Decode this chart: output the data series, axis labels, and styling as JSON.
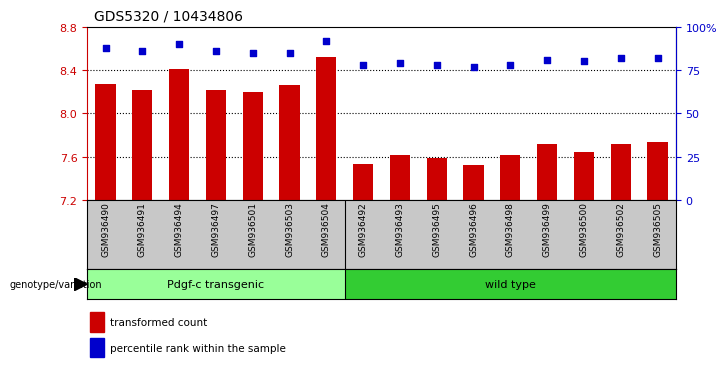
{
  "title": "GDS5320 / 10434806",
  "categories": [
    "GSM936490",
    "GSM936491",
    "GSM936494",
    "GSM936497",
    "GSM936501",
    "GSM936503",
    "GSM936504",
    "GSM936492",
    "GSM936493",
    "GSM936495",
    "GSM936496",
    "GSM936498",
    "GSM936499",
    "GSM936500",
    "GSM936502",
    "GSM936505"
  ],
  "bar_values": [
    8.27,
    8.22,
    8.41,
    8.22,
    8.2,
    8.26,
    8.52,
    7.53,
    7.62,
    7.59,
    7.52,
    7.62,
    7.72,
    7.64,
    7.72,
    7.74
  ],
  "percentile_values": [
    88,
    86,
    90,
    86,
    85,
    85,
    92,
    78,
    79,
    78,
    77,
    78,
    81,
    80,
    82,
    82
  ],
  "bar_color": "#cc0000",
  "dot_color": "#0000cc",
  "ylim_left": [
    7.2,
    8.8
  ],
  "ylim_right": [
    0,
    100
  ],
  "yticks_left": [
    7.2,
    7.6,
    8.0,
    8.4,
    8.8
  ],
  "yticks_right": [
    0,
    25,
    50,
    75,
    100
  ],
  "ytick_labels_right": [
    "0",
    "25",
    "50",
    "75",
    "100%"
  ],
  "grid_lines": [
    7.6,
    8.0,
    8.4
  ],
  "group1_label": "Pdgf-c transgenic",
  "group1_count": 7,
  "group2_label": "wild type",
  "group2_count": 9,
  "group_label_prefix": "genotype/variation",
  "legend_bar_label": "transformed count",
  "legend_dot_label": "percentile rank within the sample",
  "group1_color": "#99ff99",
  "group2_color": "#33cc33",
  "bg_color": "#ffffff",
  "tick_area_color": "#c8c8c8"
}
